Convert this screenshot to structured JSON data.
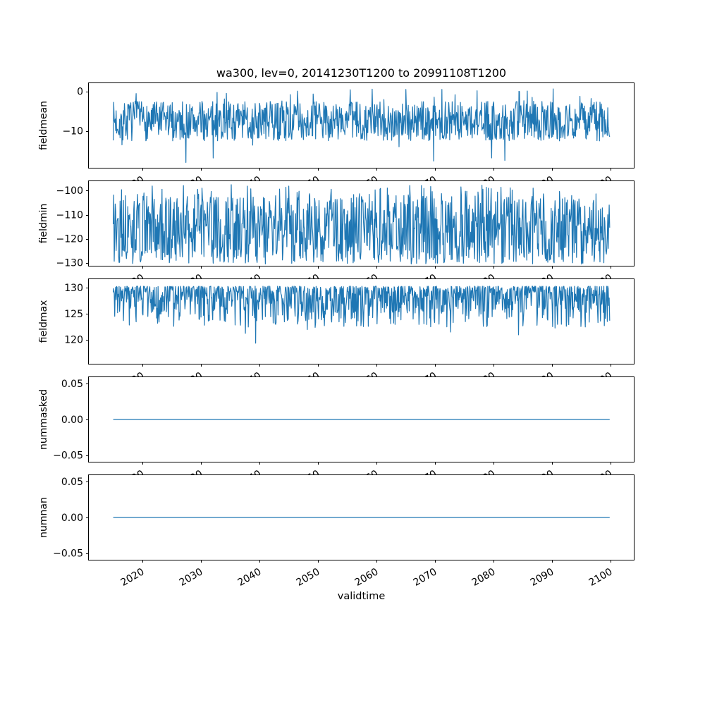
{
  "chart_data": {
    "type": "line",
    "title": "wa300, lev=0, 20141230T1200 to 20991108T1200",
    "xlabel": "validtime",
    "line_color": "#1f77b4",
    "grid": false,
    "legend": "none",
    "x": {
      "range": [
        2010.7,
        2104.1
      ],
      "data_start": 2014.99,
      "data_end": 2099.86,
      "ticks": [
        2020,
        2030,
        2040,
        2050,
        2060,
        2070,
        2080,
        2090,
        2100
      ],
      "tick_labels": [
        "2020",
        "2030",
        "2040",
        "2050",
        "2060",
        "2070",
        "2080",
        "2090",
        "2100"
      ],
      "tick_rotation_deg": 30
    },
    "n_points": 1019,
    "subplots": [
      {
        "id": "fieldmean",
        "ylabel": "fieldmean",
        "ylim": [
          -19.5,
          2.3
        ],
        "yticks": [
          {
            "v": 0,
            "label": "0"
          },
          {
            "v": -10,
            "label": "−10"
          }
        ],
        "series": {
          "mode": "band",
          "seed": 7,
          "lo": -12.5,
          "hi": -2.5,
          "p_high": 0.03,
          "high_out": 3.2,
          "p_low": 0.012,
          "low_out": 5.8
        }
      },
      {
        "id": "fieldmin",
        "ylabel": "fieldmin",
        "ylim": [
          -131.5,
          -95.8
        ],
        "yticks": [
          {
            "v": -100,
            "label": "−100"
          },
          {
            "v": -110,
            "label": "−110"
          },
          {
            "v": -120,
            "label": "−120"
          },
          {
            "v": -130,
            "label": "−130"
          }
        ],
        "series": {
          "mode": "band",
          "seed": 13,
          "lo": -129.5,
          "hi": -102,
          "p_high": 0.05,
          "high_out": 4.5,
          "p_low": 0.04,
          "low_out": 1.0
        }
      },
      {
        "id": "fieldmax",
        "ylabel": "fieldmax",
        "ylim": [
          115.2,
          131.8
        ],
        "yticks": [
          {
            "v": 130,
            "label": "130"
          },
          {
            "v": 125,
            "label": "125"
          },
          {
            "v": 120,
            "label": "120"
          }
        ],
        "series": {
          "mode": "topskew",
          "seed": 21,
          "top": 130.3,
          "amp": 8,
          "power": 2.3,
          "p_low": 0.012,
          "extra": 7,
          "clamp_min": 115.6
        }
      },
      {
        "id": "nummasked",
        "ylabel": "nummasked",
        "ylim": [
          -0.06,
          0.06
        ],
        "yticks": [
          {
            "v": 0.05,
            "label": "0.05"
          },
          {
            "v": 0,
            "label": "0.00"
          },
          {
            "v": -0.05,
            "label": "−0.05"
          }
        ],
        "series": {
          "mode": "constant",
          "value": 0
        }
      },
      {
        "id": "numnan",
        "ylabel": "numnan",
        "ylim": [
          -0.06,
          0.06
        ],
        "yticks": [
          {
            "v": 0.05,
            "label": "0.05"
          },
          {
            "v": 0,
            "label": "0.00"
          },
          {
            "v": -0.05,
            "label": "−0.05"
          }
        ],
        "series": {
          "mode": "constant",
          "value": 0
        }
      }
    ]
  }
}
